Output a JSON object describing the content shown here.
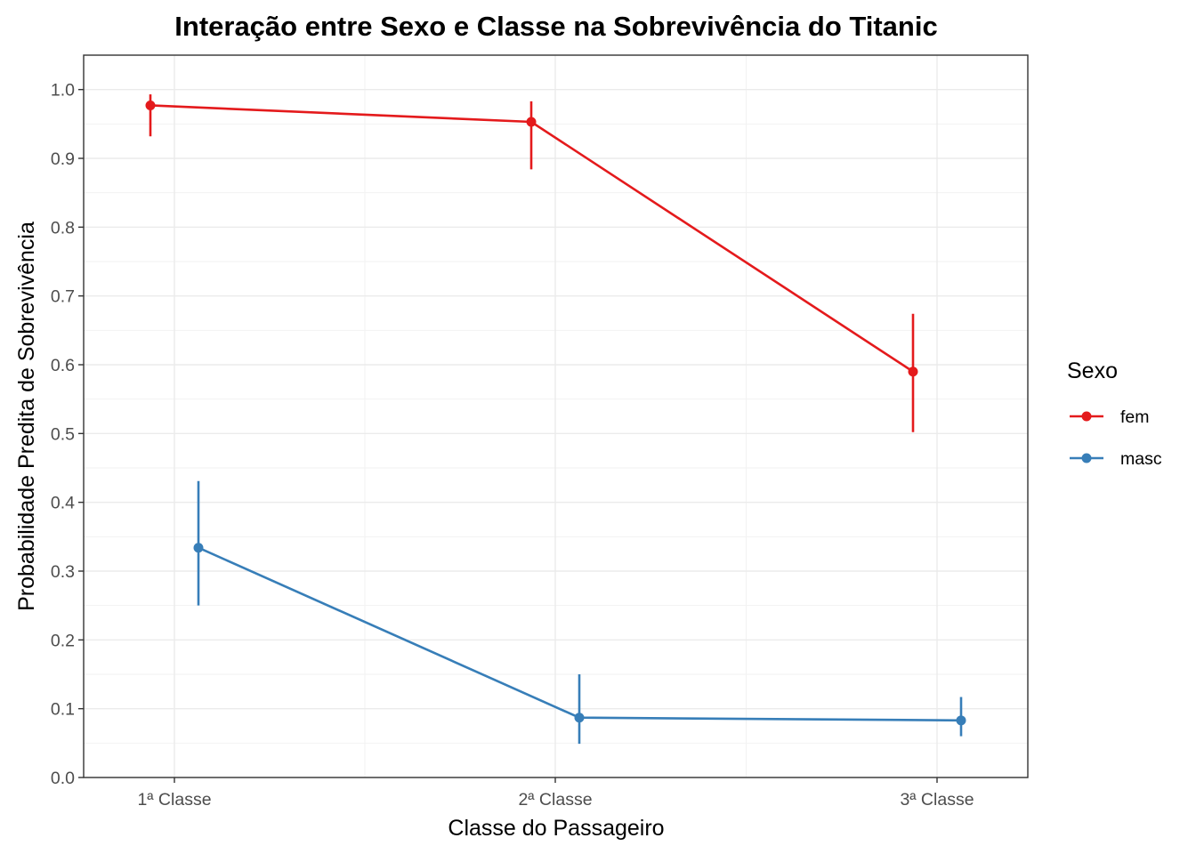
{
  "chart_data": {
    "type": "line",
    "title": "Interação entre Sexo e Classe na Sobrevivência do Titanic",
    "xlabel": "Classe do Passageiro",
    "ylabel": "Probabilidade Predita de Sobrevivência",
    "categories": [
      "1ª Classe",
      "2ª Classe",
      "3ª Classe"
    ],
    "ylim": [
      0,
      1.05
    ],
    "yticks": [
      0.0,
      0.1,
      0.2,
      0.3,
      0.4,
      0.5,
      0.6,
      0.7,
      0.8,
      0.9,
      1.0
    ],
    "ytick_labels": [
      "0.0",
      "0.1",
      "0.2",
      "0.3",
      "0.4",
      "0.5",
      "0.6",
      "0.7",
      "0.8",
      "0.9",
      "1.0"
    ],
    "grid": true,
    "legend": {
      "title": "Sexo",
      "placement": "right"
    },
    "series": [
      {
        "name": "fem",
        "color": "#E41A1C",
        "values": [
          0.977,
          0.953,
          0.59
        ],
        "lower": [
          0.932,
          0.884,
          0.502
        ],
        "upper": [
          0.993,
          0.983,
          0.674
        ]
      },
      {
        "name": "masc",
        "color": "#377EB8",
        "values": [
          0.334,
          0.087,
          0.083
        ],
        "lower": [
          0.25,
          0.049,
          0.06
        ],
        "upper": [
          0.431,
          0.15,
          0.117
        ]
      }
    ]
  }
}
